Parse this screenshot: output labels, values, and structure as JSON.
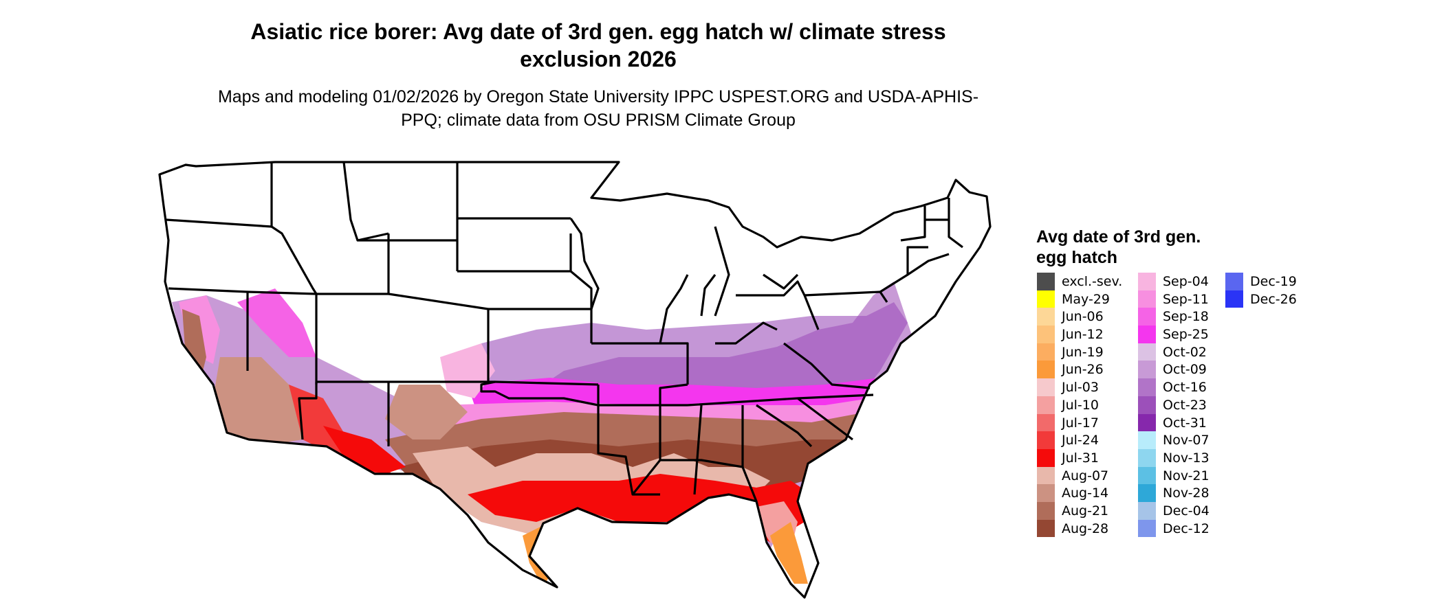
{
  "title": "Asiatic rice borer: Avg date of 3rd gen. egg hatch w/ climate stress exclusion 2026",
  "subtitle": "Maps and modeling 01/02/2026 by Oregon State University IPPC USPEST.ORG and USDA-APHIS-PPQ; climate data from OSU PRISM Climate Group",
  "legend": {
    "title": "Avg date of 3rd gen. egg hatch",
    "items": [
      {
        "label": "excl.-sev.",
        "color": "#4d4d4d"
      },
      {
        "label": "May-29",
        "color": "#ffff00"
      },
      {
        "label": "Jun-06",
        "color": "#fdd797"
      },
      {
        "label": "Jun-12",
        "color": "#fdc27a"
      },
      {
        "label": "Jun-19",
        "color": "#fcad60"
      },
      {
        "label": "Jun-26",
        "color": "#fb9a3a"
      },
      {
        "label": "Jul-03",
        "color": "#f6c9cc"
      },
      {
        "label": "Jul-10",
        "color": "#f4a0a0"
      },
      {
        "label": "Jul-17",
        "color": "#f26a6a"
      },
      {
        "label": "Jul-24",
        "color": "#f23a3a"
      },
      {
        "label": "Jul-31",
        "color": "#f50a0a"
      },
      {
        "label": "Aug-07",
        "color": "#e8b8ab"
      },
      {
        "label": "Aug-14",
        "color": "#cc9282"
      },
      {
        "label": "Aug-21",
        "color": "#b06d5a"
      },
      {
        "label": "Aug-28",
        "color": "#944733"
      },
      {
        "label": "Sep-04",
        "color": "#f8b4e0"
      },
      {
        "label": "Sep-11",
        "color": "#f78fe0"
      },
      {
        "label": "Sep-18",
        "color": "#f563e6"
      },
      {
        "label": "Sep-25",
        "color": "#f436ee"
      },
      {
        "label": "Oct-02",
        "color": "#dcc2e4"
      },
      {
        "label": "Oct-09",
        "color": "#c89ad6"
      },
      {
        "label": "Oct-16",
        "color": "#b174c8"
      },
      {
        "label": "Oct-23",
        "color": "#9c50ba"
      },
      {
        "label": "Oct-31",
        "color": "#8628ac"
      },
      {
        "label": "Nov-07",
        "color": "#b8ecfb"
      },
      {
        "label": "Nov-13",
        "color": "#8ed6ef"
      },
      {
        "label": "Nov-21",
        "color": "#5cc0e4"
      },
      {
        "label": "Nov-28",
        "color": "#2ea8d8"
      },
      {
        "label": "Dec-04",
        "color": "#a6c4e8"
      },
      {
        "label": "Dec-12",
        "color": "#7e96ec"
      },
      {
        "label": "Dec-19",
        "color": "#5a66f0"
      },
      {
        "label": "Dec-26",
        "color": "#2a34f6"
      }
    ]
  }
}
